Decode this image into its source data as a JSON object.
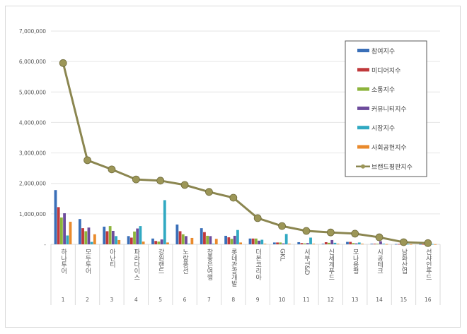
{
  "chart_data": {
    "type": "bar",
    "title": "",
    "xlabel": "",
    "ylabel": "",
    "ylim": [
      0,
      7000000
    ],
    "y_ticks": [
      "-",
      "1,000,000",
      "2,000,000",
      "3,000,000",
      "4,000,000",
      "5,000,000",
      "6,000,000",
      "7,000,000"
    ],
    "grid": true,
    "legend_position": "top-right",
    "categories": [
      "하나투어",
      "모두투어",
      "아난티",
      "파라다이스",
      "강원랜드",
      "노랑풍선",
      "참좋은여행",
      "롯데관광개발",
      "더본코리아",
      "GKL",
      "서부T&D",
      "신세계푸드",
      "모나용평",
      "시공테크",
      "남화산업",
      "선샤인푸드"
    ],
    "ranks": [
      "1",
      "2",
      "3",
      "4",
      "5",
      "6",
      "7",
      "8",
      "9",
      "10",
      "11",
      "12",
      "13",
      "14",
      "15",
      "16"
    ],
    "series": [
      {
        "name": "참여지수",
        "kind": "bar",
        "color": "#3a6fb8",
        "values": [
          1780000,
          830000,
          580000,
          270000,
          190000,
          650000,
          530000,
          280000,
          190000,
          60000,
          70000,
          20000,
          80000,
          20000,
          10000,
          10000
        ]
      },
      {
        "name": "미디어지수",
        "kind": "bar",
        "color": "#c0393b",
        "values": [
          1220000,
          530000,
          430000,
          220000,
          110000,
          430000,
          400000,
          230000,
          190000,
          60000,
          40000,
          70000,
          80000,
          20000,
          10000,
          5000
        ]
      },
      {
        "name": "소통지수",
        "kind": "bar",
        "color": "#8db43c",
        "values": [
          880000,
          430000,
          600000,
          420000,
          90000,
          330000,
          280000,
          180000,
          190000,
          60000,
          30000,
          50000,
          40000,
          20000,
          10000,
          5000
        ]
      },
      {
        "name": "커뮤니티지수",
        "kind": "bar",
        "color": "#6d4c9c",
        "values": [
          1020000,
          550000,
          440000,
          520000,
          160000,
          270000,
          270000,
          280000,
          120000,
          30000,
          40000,
          140000,
          30000,
          100000,
          10000,
          5000
        ]
      },
      {
        "name": "시장지수",
        "kind": "bar",
        "color": "#31a9c2",
        "values": [
          290000,
          80000,
          270000,
          600000,
          1450000,
          20000,
          20000,
          470000,
          150000,
          340000,
          220000,
          50000,
          60000,
          20000,
          10000,
          10000
        ]
      },
      {
        "name": "사회공헌지수",
        "kind": "bar",
        "color": "#e98a2c",
        "values": [
          740000,
          330000,
          140000,
          90000,
          60000,
          210000,
          180000,
          60000,
          20000,
          20000,
          20000,
          20000,
          20000,
          10000,
          5000,
          5000
        ]
      },
      {
        "name": "브랜드평판지수",
        "kind": "line",
        "color": "#8b8650",
        "values": [
          5950000,
          2760000,
          2460000,
          2130000,
          2090000,
          1950000,
          1720000,
          1530000,
          860000,
          600000,
          440000,
          390000,
          350000,
          230000,
          70000,
          40000
        ]
      }
    ]
  }
}
